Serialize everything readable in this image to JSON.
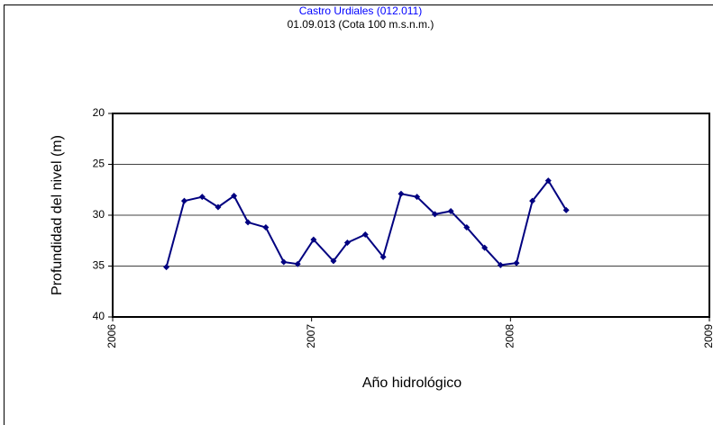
{
  "chart_data": {
    "type": "line",
    "title": "Castro Urdiales (012.011)",
    "subtitle": "01.09.013 (Cota 100 m.s.n.m.)",
    "ylabel": "Profundidad del nivel (m)",
    "xlabel": "Año hidrológico",
    "x": [
      2006.27,
      2006.36,
      2006.45,
      2006.53,
      2006.61,
      2006.68,
      2006.77,
      2006.86,
      2006.93,
      2007.01,
      2007.11,
      2007.18,
      2007.27,
      2007.36,
      2007.45,
      2007.53,
      2007.62,
      2007.7,
      2007.78,
      2007.87,
      2007.95,
      2008.03,
      2008.11,
      2008.19,
      2008.28
    ],
    "values": [
      35.1,
      28.6,
      28.2,
      29.2,
      28.1,
      30.7,
      31.2,
      34.6,
      34.8,
      32.4,
      34.5,
      32.7,
      31.9,
      34.1,
      27.9,
      28.2,
      29.9,
      29.6,
      31.2,
      33.2,
      34.9,
      34.7,
      28.6,
      26.6,
      29.5
    ],
    "color": "#000080",
    "xlim": [
      2006,
      2009
    ],
    "xticks": [
      2006,
      2007,
      2008,
      2009
    ],
    "ylim": [
      20,
      40
    ],
    "yticks": [
      20,
      25,
      30,
      35,
      40
    ],
    "y_inverted": true,
    "grid": true
  }
}
